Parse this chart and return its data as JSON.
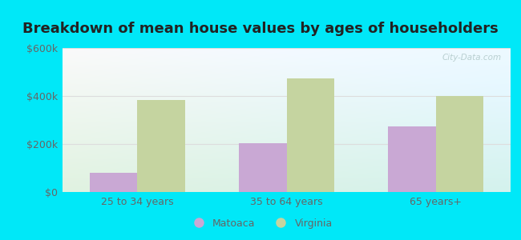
{
  "title": "Breakdown of mean house values by ages of householders",
  "categories": [
    "25 to 34 years",
    "35 to 64 years",
    "65 years+"
  ],
  "matoaca_values": [
    80000,
    205000,
    275000
  ],
  "virginia_values": [
    385000,
    475000,
    400000
  ],
  "ylim": [
    0,
    600000
  ],
  "ytick_labels": [
    "$0",
    "$200k",
    "$400k",
    "$600k"
  ],
  "ytick_values": [
    0,
    200000,
    400000,
    600000
  ],
  "bar_color_matoaca": "#c9a8d4",
  "bar_color_virginia": "#c5d4a0",
  "background_color_outer": "#00e8f8",
  "plot_bg_color": "#dff0e0",
  "legend_matoaca": "Matoaca",
  "legend_virginia": "Virginia",
  "title_fontsize": 13,
  "bar_width": 0.32,
  "grid_color": "#dddddd",
  "axis_label_color": "#666666",
  "watermark": "City-Data.com",
  "title_color": "#222222"
}
